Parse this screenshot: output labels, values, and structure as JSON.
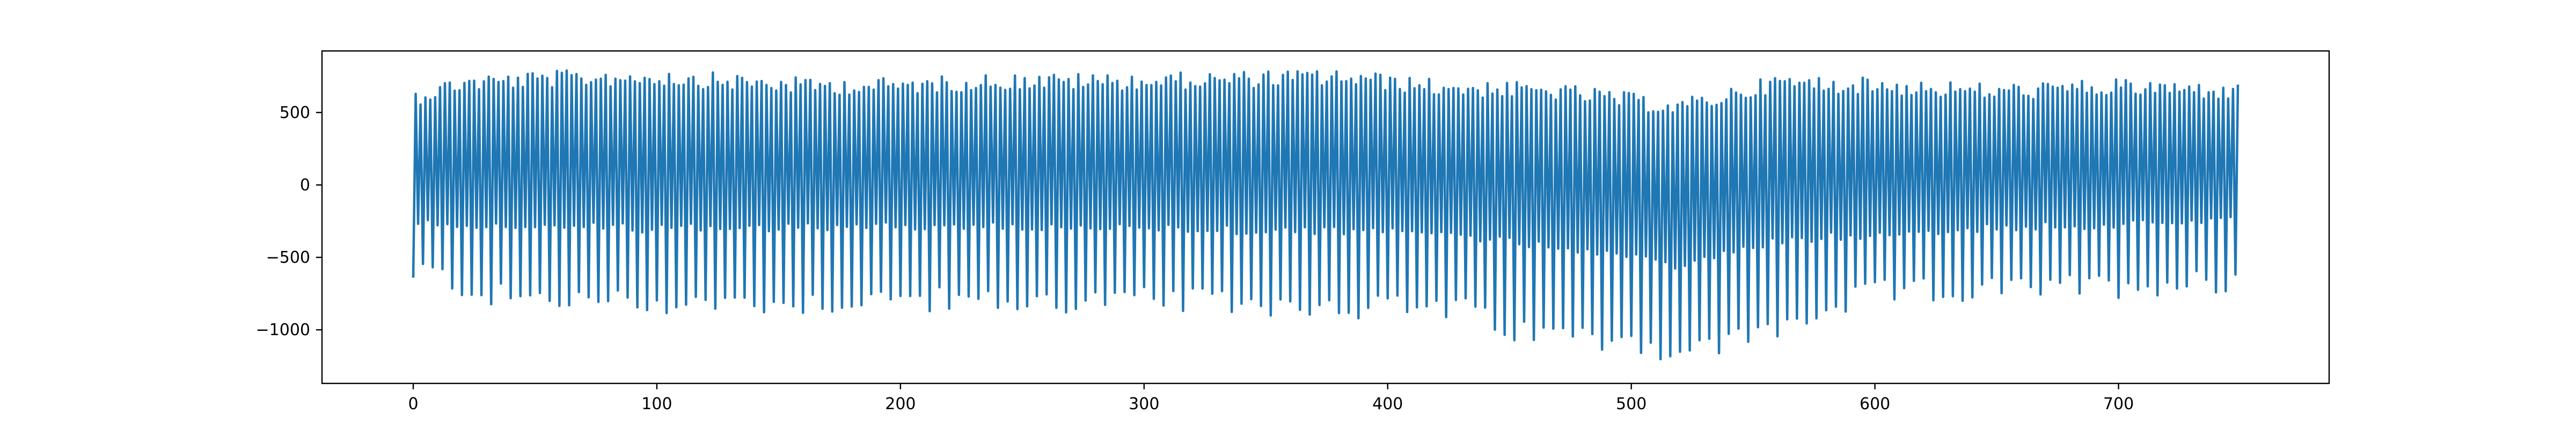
{
  "chart_data": {
    "type": "line",
    "title": "",
    "xlabel": "",
    "ylabel": "",
    "xlim": [
      -37.45,
      786.45
    ],
    "ylim": [
      -1370,
      925
    ],
    "x_ticks": [
      0,
      100,
      200,
      300,
      400,
      500,
      600,
      700
    ],
    "y_ticks": [
      500,
      0,
      -500,
      -1000
    ],
    "x_tick_labels": [
      "0",
      "100",
      "200",
      "300",
      "400",
      "500",
      "600",
      "700"
    ],
    "y_tick_labels": [
      "500",
      "0",
      "−500",
      "−1000"
    ],
    "grid": false,
    "legend": "none",
    "n_points": 750,
    "series": [
      {
        "color": "#1f77b4",
        "pattern": {
          "period": 4,
          "phase_values": [
            -640,
            660,
            -260,
            630
          ]
        },
        "x_start": 0,
        "x_end": 749,
        "peak_envelope": [
          [
            0,
            660
          ],
          [
            20,
            760
          ],
          [
            60,
            790
          ],
          [
            100,
            800
          ],
          [
            160,
            740
          ],
          [
            200,
            740
          ],
          [
            240,
            770
          ],
          [
            300,
            770
          ],
          [
            380,
            800
          ],
          [
            420,
            730
          ],
          [
            470,
            700
          ],
          [
            520,
            590
          ],
          [
            560,
            760
          ],
          [
            600,
            740
          ],
          [
            650,
            700
          ],
          [
            700,
            730
          ],
          [
            749,
            700
          ]
        ],
        "trough_envelope": [
          [
            0,
            -640
          ],
          [
            30,
            -850
          ],
          [
            60,
            -880
          ],
          [
            100,
            -900
          ],
          [
            160,
            -900
          ],
          [
            200,
            -870
          ],
          [
            240,
            -900
          ],
          [
            300,
            -880
          ],
          [
            380,
            -920
          ],
          [
            430,
            -940
          ],
          [
            450,
            -1100
          ],
          [
            500,
            -1150
          ],
          [
            520,
            -1260
          ],
          [
            560,
            -1080
          ],
          [
            600,
            -830
          ],
          [
            650,
            -810
          ],
          [
            700,
            -780
          ],
          [
            749,
            -740
          ]
        ],
        "secondary_envelope": [
          [
            0,
            -260
          ],
          [
            100,
            -300
          ],
          [
            200,
            -280
          ],
          [
            300,
            -300
          ],
          [
            420,
            -330
          ],
          [
            500,
            -480
          ],
          [
            520,
            -560
          ],
          [
            560,
            -380
          ],
          [
            650,
            -290
          ],
          [
            749,
            -250
          ]
        ]
      }
    ]
  }
}
